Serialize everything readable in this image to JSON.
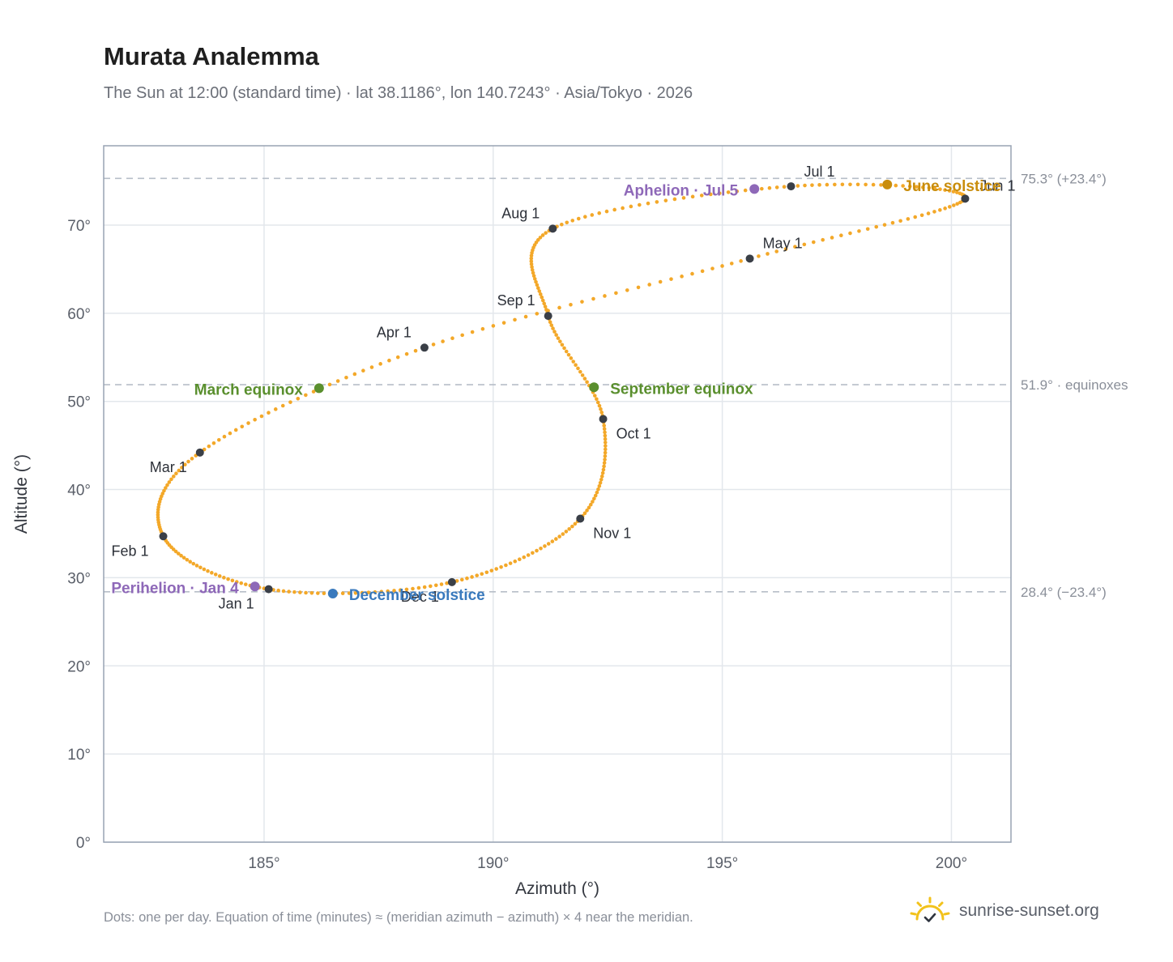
{
  "header": {
    "title": "Murata Analemma",
    "subtitle": "The Sun at 12:00 (standard time) · lat 38.1186°, lon 140.7243° · Asia/Tokyo · 2026"
  },
  "footer": {
    "note": "Dots: one per day. Equation of time (minutes) ≈ (meridian azimuth − azimuth) × 4 near the meridian.",
    "brand": "sunrise-sunset.org"
  },
  "colors": {
    "curve": "#f3a829",
    "month_marker": "#3a3f47",
    "equinox": "#5a8f2e",
    "june_solstice": "#c98d0c",
    "december_solstice": "#3a7abd",
    "apsis": "#8e68b8",
    "grid": "#e3e7ec",
    "frame": "#98a3b3",
    "reference_line": "#b7bec8",
    "brand_sun": "#f2c21b"
  },
  "chart_data": {
    "type": "scatter",
    "xlabel": "Azimuth (°)",
    "ylabel": "Altitude (°)",
    "xlim": [
      181.5,
      201.3
    ],
    "ylim": [
      0,
      79
    ],
    "x_ticks": [
      {
        "value": 185,
        "label": "185°"
      },
      {
        "value": 190,
        "label": "190°"
      },
      {
        "value": 195,
        "label": "195°"
      },
      {
        "value": 200,
        "label": "200°"
      }
    ],
    "y_ticks": [
      {
        "value": 0,
        "label": "0°"
      },
      {
        "value": 10,
        "label": "10°"
      },
      {
        "value": 20,
        "label": "20°"
      },
      {
        "value": 30,
        "label": "30°"
      },
      {
        "value": 40,
        "label": "40°"
      },
      {
        "value": 50,
        "label": "50°"
      },
      {
        "value": 60,
        "label": "60°"
      },
      {
        "value": 70,
        "label": "70°"
      }
    ],
    "grid": true,
    "reference_lines": [
      {
        "value": 75.3,
        "label": "75.3° (+23.4°)"
      },
      {
        "value": 51.9,
        "label": "51.9° · equinoxes"
      },
      {
        "value": 28.4,
        "label": "28.4° (−23.4°)"
      }
    ],
    "series": [
      {
        "name": "daily sun position",
        "points": [
          [
            185.1,
            28.7
          ],
          [
            182.8,
            34.7
          ],
          [
            183.6,
            44.2
          ],
          [
            188.5,
            56.1
          ],
          [
            195.6,
            66.2
          ],
          [
            200.3,
            73.0
          ],
          [
            196.5,
            74.4
          ],
          [
            191.3,
            69.6
          ],
          [
            191.2,
            59.7
          ],
          [
            192.4,
            48.0
          ],
          [
            191.9,
            36.7
          ],
          [
            189.1,
            29.5
          ]
        ]
      }
    ],
    "month_markers": [
      {
        "label": "Jan 1",
        "x": 185.1,
        "y": 28.7
      },
      {
        "label": "Feb 1",
        "x": 182.8,
        "y": 34.7
      },
      {
        "label": "Mar 1",
        "x": 183.6,
        "y": 44.2
      },
      {
        "label": "Apr 1",
        "x": 188.5,
        "y": 56.1
      },
      {
        "label": "May 1",
        "x": 195.6,
        "y": 66.2
      },
      {
        "label": "Jun 1",
        "x": 200.3,
        "y": 73.0
      },
      {
        "label": "Jul 1",
        "x": 196.5,
        "y": 74.4
      },
      {
        "label": "Aug 1",
        "x": 191.3,
        "y": 69.6
      },
      {
        "label": "Sep 1",
        "x": 191.2,
        "y": 59.7
      },
      {
        "label": "Oct 1",
        "x": 192.4,
        "y": 48.0
      },
      {
        "label": "Nov 1",
        "x": 191.9,
        "y": 36.7
      },
      {
        "label": "Dec 1",
        "x": 189.1,
        "y": 29.5
      }
    ],
    "events": [
      {
        "label": "March equinox",
        "x": 186.2,
        "y": 51.5,
        "kind": "equinox"
      },
      {
        "label": "September equinox",
        "x": 192.2,
        "y": 51.6,
        "kind": "equinox"
      },
      {
        "label": "June solstice",
        "x": 198.6,
        "y": 74.6,
        "kind": "june_solstice"
      },
      {
        "label": "December solstice",
        "x": 186.5,
        "y": 28.2,
        "kind": "december_solstice"
      },
      {
        "label": "Perihelion · Jan 4",
        "x": 184.8,
        "y": 29.0,
        "kind": "apsis"
      },
      {
        "label": "Aphelion · Jul 5",
        "x": 195.7,
        "y": 74.1,
        "kind": "apsis"
      }
    ]
  }
}
